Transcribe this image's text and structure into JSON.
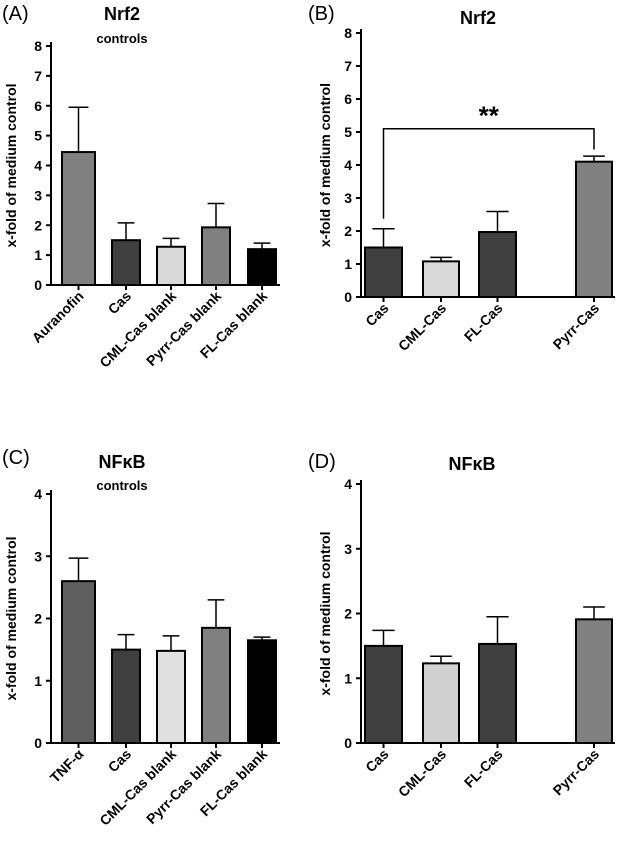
{
  "chart_data": [
    {
      "panel": "(A)",
      "type": "bar",
      "title": "Nrf2",
      "subtitle": "controls",
      "ylabel": "x-fold of medium control",
      "ylim": [
        0,
        8
      ],
      "yticks": [
        "0",
        "1",
        "2",
        "3",
        "4",
        "5",
        "6",
        "7",
        "8"
      ],
      "categories": [
        "Auranofin",
        "Cas",
        "CML-Cas blank",
        "Pyrr-Cas blank",
        "FL-Cas blank"
      ],
      "values": [
        4.45,
        1.5,
        1.28,
        1.93,
        1.2
      ],
      "errors": [
        1.5,
        0.58,
        0.28,
        0.8,
        0.2
      ],
      "colors": [
        "#808080",
        "#3f3f3f",
        "#d9d9d9",
        "#808080",
        "#000000"
      ]
    },
    {
      "panel": "(B)",
      "type": "bar",
      "title": "Nrf2",
      "ylabel": "x-fold of medium control",
      "ylim": [
        0,
        8
      ],
      "yticks": [
        "0",
        "1",
        "2",
        "3",
        "4",
        "5",
        "6",
        "7",
        "8"
      ],
      "categories": [
        "Cas",
        "CML-Cas",
        "FL-Cas",
        "Pyrr-Cas"
      ],
      "values": [
        1.5,
        1.08,
        1.97,
        4.1
      ],
      "errors": [
        0.57,
        0.12,
        0.62,
        0.17
      ],
      "colors": [
        "#3f3f3f",
        "#d9d9d9",
        "#3f3f3f",
        "#808080"
      ],
      "significance": {
        "from": "Cas",
        "to": "Pyrr-Cas",
        "label": "**"
      }
    },
    {
      "panel": "(C)",
      "type": "bar",
      "title": "NFκB",
      "subtitle": "controls",
      "ylabel": "x-fold of medium control",
      "ylim": [
        0,
        4
      ],
      "yticks": [
        "0",
        "1",
        "2",
        "3",
        "4"
      ],
      "categories": [
        "TNF-α",
        "Cas",
        "CML-Cas blank",
        "Pyrr-Cas blank",
        "FL-Cas blank"
      ],
      "values": [
        2.6,
        1.5,
        1.48,
        1.85,
        1.65
      ],
      "errors": [
        0.37,
        0.24,
        0.24,
        0.45,
        0.05
      ],
      "colors": [
        "#5f5f5f",
        "#3f3f3f",
        "#e0e0e0",
        "#808080",
        "#000000"
      ]
    },
    {
      "panel": "(D)",
      "type": "bar",
      "title": "NFκB",
      "ylabel": "x-fold of medium control",
      "ylim": [
        0,
        4
      ],
      "yticks": [
        "0",
        "1",
        "2",
        "3",
        "4"
      ],
      "categories": [
        "Cas",
        "CML-Cas",
        "FL-Cas",
        "Pyrr-Cas"
      ],
      "values": [
        1.5,
        1.23,
        1.53,
        1.91
      ],
      "errors": [
        0.24,
        0.11,
        0.42,
        0.19
      ],
      "colors": [
        "#3f3f3f",
        "#d0d0d0",
        "#3f3f3f",
        "#808080"
      ]
    }
  ]
}
